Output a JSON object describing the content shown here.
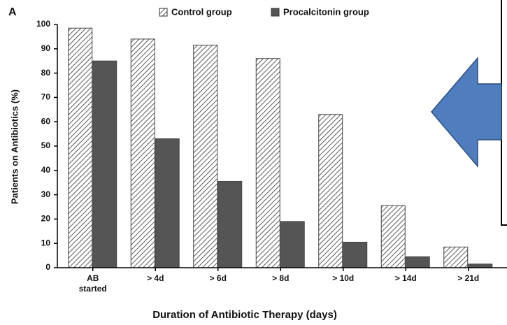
{
  "chart_data": {
    "type": "bar",
    "panel_label": "A",
    "y_label": "Patients on Antibiotics (%)",
    "x_label": "Duration of Antibiotic Therapy (days)",
    "categories": [
      "AB started",
      "> 4d",
      "> 6d",
      "> 8d",
      "> 10d",
      "> 14d",
      "> 21d"
    ],
    "series": [
      {
        "name": "Control group",
        "color": "#ffffff",
        "hatch": true,
        "values": [
          98.5,
          94,
          91.5,
          86,
          63,
          25.5,
          8.5
        ]
      },
      {
        "name": "Procalcitonin group",
        "color": "#555555",
        "hatch": false,
        "values": [
          85,
          53,
          35.5,
          19,
          10.5,
          4.5,
          1.5
        ]
      }
    ],
    "ylim": [
      0,
      100
    ],
    "yticks": [
      0,
      10,
      20,
      30,
      40,
      50,
      60,
      70,
      80,
      90,
      100
    ],
    "grid": false
  }
}
